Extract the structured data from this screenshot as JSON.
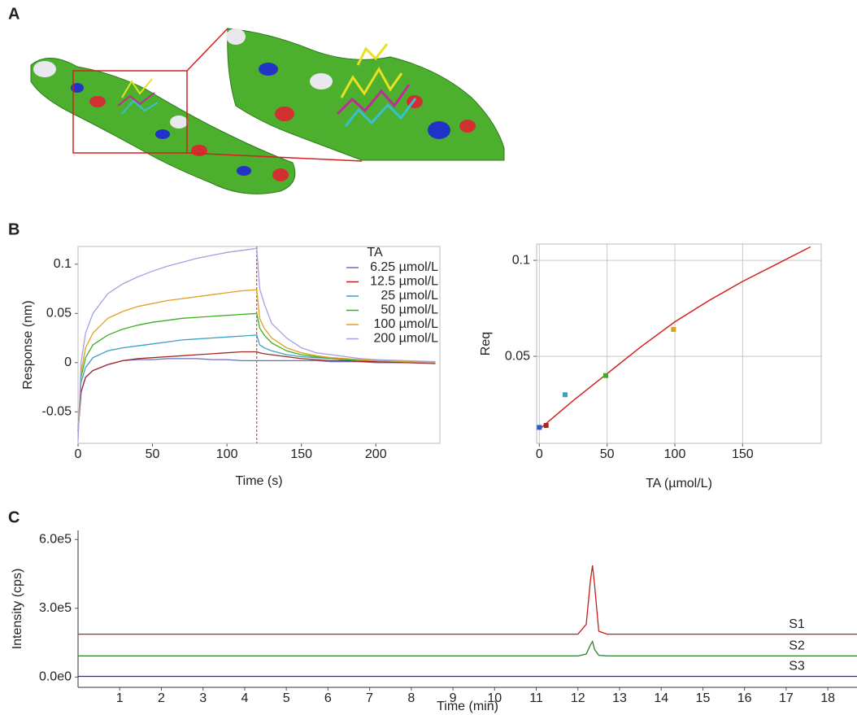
{
  "panels": [
    "A",
    "B",
    "C"
  ],
  "chart_data": [
    {
      "type": "line",
      "xlabel": "Time (s)",
      "ylabel": "Response (nm)",
      "x": [
        0,
        2,
        5,
        10,
        20,
        30,
        40,
        50,
        60,
        70,
        80,
        90,
        100,
        110,
        120,
        122,
        125,
        130,
        140,
        150,
        160,
        170,
        180,
        190,
        200,
        220,
        240
      ],
      "xlim": [
        0,
        243
      ],
      "xticks": [
        0,
        50,
        100,
        150,
        200
      ],
      "ylim": [
        -0.082,
        0.118
      ],
      "yticks": [
        -0.05,
        0,
        0.05,
        0.1
      ],
      "vline": 120,
      "vline_color": "#d42020",
      "grid": false,
      "legend_title": "TA",
      "legend": "upper right",
      "series": [
        {
          "name": "6.25 µmol/L",
          "color": "#6b6bc4",
          "values": [
            -0.07,
            -0.03,
            -0.015,
            -0.008,
            -0.002,
            0.002,
            0.003,
            0.003,
            0.004,
            0.004,
            0.004,
            0.003,
            0.003,
            0.002,
            0.002,
            0.002,
            0.002,
            0.002,
            0.002,
            0.002,
            0.002,
            0.001,
            0.001,
            0.001,
            0,
            0,
            0
          ]
        },
        {
          "name": "12.5 µmol/L",
          "color": "#a02828",
          "values": [
            -0.07,
            -0.03,
            -0.015,
            -0.008,
            -0.002,
            0.002,
            0.004,
            0.005,
            0.006,
            0.007,
            0.008,
            0.009,
            0.01,
            0.011,
            0.011,
            0.01,
            0.009,
            0.008,
            0.006,
            0.004,
            0.003,
            0.002,
            0.002,
            0.001,
            0.001,
            0,
            -0.001
          ]
        },
        {
          "name": "25 µmol/L",
          "color": "#3aa0c4",
          "values": [
            -0.07,
            -0.02,
            -0.005,
            0.005,
            0.012,
            0.015,
            0.017,
            0.019,
            0.021,
            0.023,
            0.024,
            0.025,
            0.026,
            0.027,
            0.028,
            0.018,
            0.015,
            0.012,
            0.008,
            0.006,
            0.005,
            0.004,
            0.003,
            0.002,
            0.002,
            0.001,
            0
          ]
        },
        {
          "name": "50 µmol/L",
          "color": "#3cae22",
          "values": [
            -0.07,
            -0.015,
            0.005,
            0.018,
            0.028,
            0.034,
            0.038,
            0.041,
            0.043,
            0.045,
            0.046,
            0.047,
            0.048,
            0.049,
            0.05,
            0.035,
            0.028,
            0.02,
            0.012,
            0.008,
            0.006,
            0.004,
            0.003,
            0.002,
            0.002,
            0.001,
            0
          ]
        },
        {
          "name": "100 µmol/L",
          "color": "#e0a024",
          "values": [
            -0.075,
            -0.01,
            0.015,
            0.03,
            0.045,
            0.052,
            0.057,
            0.06,
            0.063,
            0.065,
            0.067,
            0.069,
            0.071,
            0.073,
            0.074,
            0.045,
            0.035,
            0.025,
            0.015,
            0.01,
            0.007,
            0.005,
            0.004,
            0.003,
            0.002,
            0.001,
            0
          ]
        },
        {
          "name": "200 µmol/L",
          "color": "#a79fe2",
          "values": [
            -0.08,
            0,
            0.03,
            0.05,
            0.07,
            0.08,
            0.087,
            0.093,
            0.098,
            0.102,
            0.106,
            0.109,
            0.112,
            0.114,
            0.116,
            0.075,
            0.06,
            0.04,
            0.025,
            0.015,
            0.01,
            0.008,
            0.006,
            0.004,
            0.003,
            0.002,
            0.001
          ]
        }
      ]
    },
    {
      "type": "scatter",
      "xlabel": "TA (µmol/L)",
      "ylabel": "Req",
      "x": [
        0,
        5,
        19,
        49,
        99
      ],
      "values": [
        0.013,
        0.014,
        0.03,
        0.04,
        0.064
      ],
      "colors": [
        "#2a5cc4",
        "#b02020",
        "#3aa0c4",
        "#3cae22",
        "#e0a024"
      ],
      "fit": {
        "x": [
          0,
          25,
          50,
          75,
          100,
          125,
          150,
          175,
          200
        ],
        "values": [
          0.012,
          0.027,
          0.041,
          0.055,
          0.068,
          0.079,
          0.089,
          0.098,
          0.107
        ],
        "color": "#d42020"
      },
      "xlim": [
        -2,
        208
      ],
      "xticks": [
        0,
        50,
        100,
        150
      ],
      "ylim": [
        0.0047,
        0.1085
      ],
      "yticks": [
        0.05,
        0.1
      ],
      "grid": true
    },
    {
      "type": "line",
      "xlabel": "Time (min)",
      "ylabel": "Intensity (cps)",
      "x": [
        0,
        12.0,
        12.2,
        12.3,
        12.35,
        12.4,
        12.5,
        12.7,
        18.7
      ],
      "xlim": [
        0,
        18.7
      ],
      "xticks": [
        1,
        2,
        3,
        4,
        5,
        6,
        7,
        8,
        9,
        10,
        11,
        12,
        13,
        14,
        15,
        16,
        17,
        18
      ],
      "ylim": [
        -45000,
        640000
      ],
      "yticks": [
        {
          "value": 0,
          "label": "0.0e0"
        },
        {
          "value": 300000,
          "label": "3.0e5"
        },
        {
          "value": 600000,
          "label": "6.0e5"
        }
      ],
      "grid": false,
      "series_labels": true,
      "series": [
        {
          "name": "S1",
          "color": "#c41e1e",
          "values": [
            187000,
            187000,
            230000,
            420000,
            487000,
            400000,
            200000,
            187000,
            187000
          ]
        },
        {
          "name": "S2",
          "color": "#2a7a2a",
          "values": [
            92000,
            92000,
            100000,
            140000,
            155000,
            120000,
            95000,
            92000,
            92000
          ]
        },
        {
          "name": "S3",
          "color": "#1a2eb0",
          "values": [
            3000,
            3000,
            3000,
            3000,
            3000,
            3000,
            3000,
            3000,
            3000
          ]
        }
      ]
    }
  ]
}
